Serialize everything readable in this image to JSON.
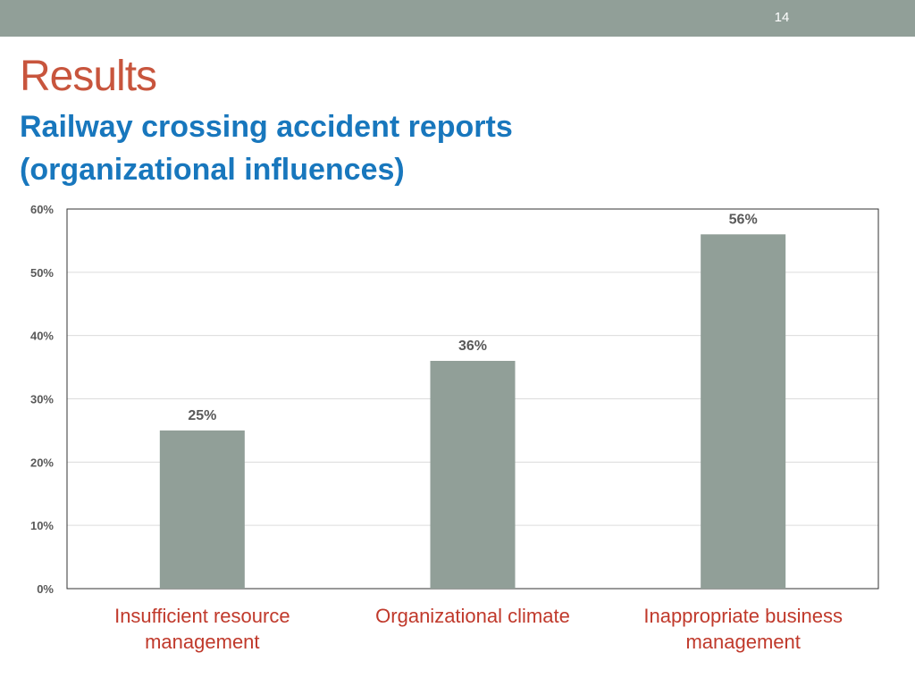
{
  "slide": {
    "number": "14"
  },
  "title": "Results",
  "subtitle": "Railway crossing accident reports (organizational influences)",
  "colors": {
    "header_bar": "#919f98",
    "bar": "#919f98",
    "title": "#c8553d",
    "subtitle": "#1877bd",
    "category_label": "#c0392b"
  },
  "chart_data": {
    "type": "bar",
    "categories": [
      "Insufficient resource management",
      "Organizational climate",
      "Inappropriate business management"
    ],
    "values": [
      25,
      36,
      56
    ],
    "data_labels": [
      "25%",
      "36%",
      "56%"
    ],
    "ylim": [
      0,
      60
    ],
    "yticks": [
      "0%",
      "10%",
      "20%",
      "30%",
      "40%",
      "50%",
      "60%"
    ],
    "grid": true,
    "xlabel": "",
    "ylabel": ""
  }
}
